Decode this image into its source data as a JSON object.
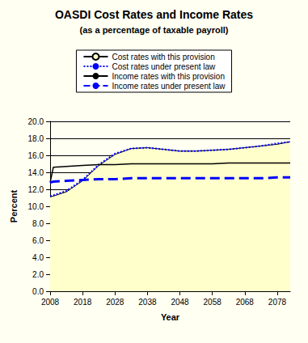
{
  "chart_data": {
    "type": "line",
    "title": "OASDI Cost Rates and Income Rates",
    "subtitle": "(as a percentage of taxable payroll)",
    "x_label": "Year",
    "y_label": "Percent",
    "x": [
      2008,
      2009,
      2013,
      2018,
      2023,
      2028,
      2033,
      2038,
      2043,
      2048,
      2053,
      2058,
      2063,
      2068,
      2073,
      2078,
      2082
    ],
    "series": [
      {
        "name": "Cost rates with this provision",
        "type": "area",
        "color": "#ffffcc",
        "line_style": "solid",
        "values": [
          11.1,
          11.2,
          11.7,
          13.0,
          14.8,
          16.1,
          16.8,
          16.9,
          16.7,
          16.5,
          16.5,
          16.6,
          16.7,
          16.9,
          17.1,
          17.3,
          17.6
        ]
      },
      {
        "name": "Cost rates under present law",
        "type": "line",
        "color": "#0000ff",
        "line_style": "dotted",
        "values": [
          11.2,
          11.3,
          11.8,
          13.1,
          14.9,
          16.2,
          16.8,
          16.9,
          16.7,
          16.5,
          16.5,
          16.6,
          16.7,
          16.9,
          17.1,
          17.4,
          17.6
        ]
      },
      {
        "name": "Income rates with this provision",
        "type": "line",
        "color": "#000000",
        "line_style": "solid",
        "values": [
          12.8,
          14.6,
          14.7,
          14.8,
          14.9,
          14.9,
          15.0,
          15.0,
          15.0,
          15.0,
          15.0,
          15.0,
          15.1,
          15.1,
          15.1,
          15.1,
          15.1
        ]
      },
      {
        "name": "Income rates under present law",
        "type": "line",
        "color": "#0000ff",
        "line_style": "dashed",
        "values": [
          12.8,
          12.9,
          13.0,
          13.1,
          13.2,
          13.2,
          13.3,
          13.3,
          13.3,
          13.3,
          13.3,
          13.3,
          13.3,
          13.3,
          13.3,
          13.4,
          13.4
        ]
      }
    ],
    "xlim": [
      2008,
      2082
    ],
    "xticks": [
      2008,
      2018,
      2028,
      2038,
      2048,
      2058,
      2068,
      2078
    ],
    "ylim": [
      0,
      20
    ],
    "yticks": [
      {
        "value": 0,
        "label": "0.0"
      },
      {
        "value": 2,
        "label": "2.0"
      },
      {
        "value": 4,
        "label": "4.0"
      },
      {
        "value": 6,
        "label": "6.0"
      },
      {
        "value": 8,
        "label": "8.0"
      },
      {
        "value": 10,
        "label": "10.0"
      },
      {
        "value": 12,
        "label": "12.0"
      },
      {
        "value": 14,
        "label": "14.0"
      },
      {
        "value": 16,
        "label": "16.0"
      },
      {
        "value": 18,
        "label": "18.0"
      },
      {
        "value": 20,
        "label": "20.0"
      }
    ],
    "grid": true,
    "legend": "top"
  }
}
